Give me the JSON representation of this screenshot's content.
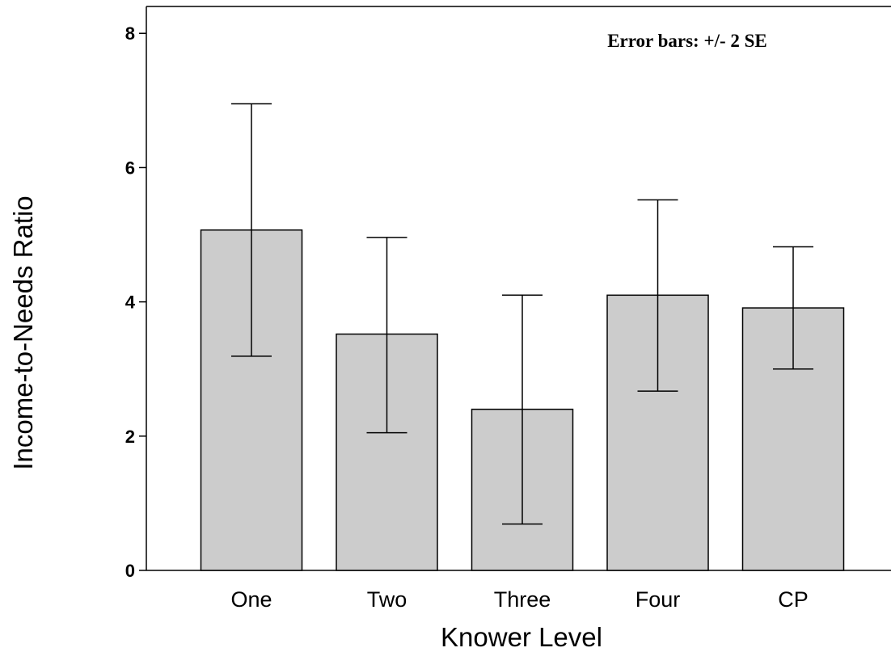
{
  "chart_data": {
    "type": "bar",
    "categories": [
      "One",
      "Two",
      "Three",
      "Four",
      "CP"
    ],
    "values": [
      5.07,
      3.52,
      2.4,
      4.1,
      3.91
    ],
    "error_low": [
      3.19,
      2.05,
      0.69,
      2.67,
      3.0
    ],
    "error_high": [
      6.95,
      4.96,
      4.1,
      5.52,
      4.82
    ],
    "title": "",
    "xlabel": "Knower Level",
    "ylabel": "Income-to-Needs Ratio",
    "ylim": [
      0,
      8.4
    ],
    "yticks": [
      0,
      2,
      4,
      6,
      8
    ],
    "annotation": "Error bars: +/- 2 SE",
    "bar_color": "#cccccc",
    "grid": false,
    "legend": "none"
  }
}
